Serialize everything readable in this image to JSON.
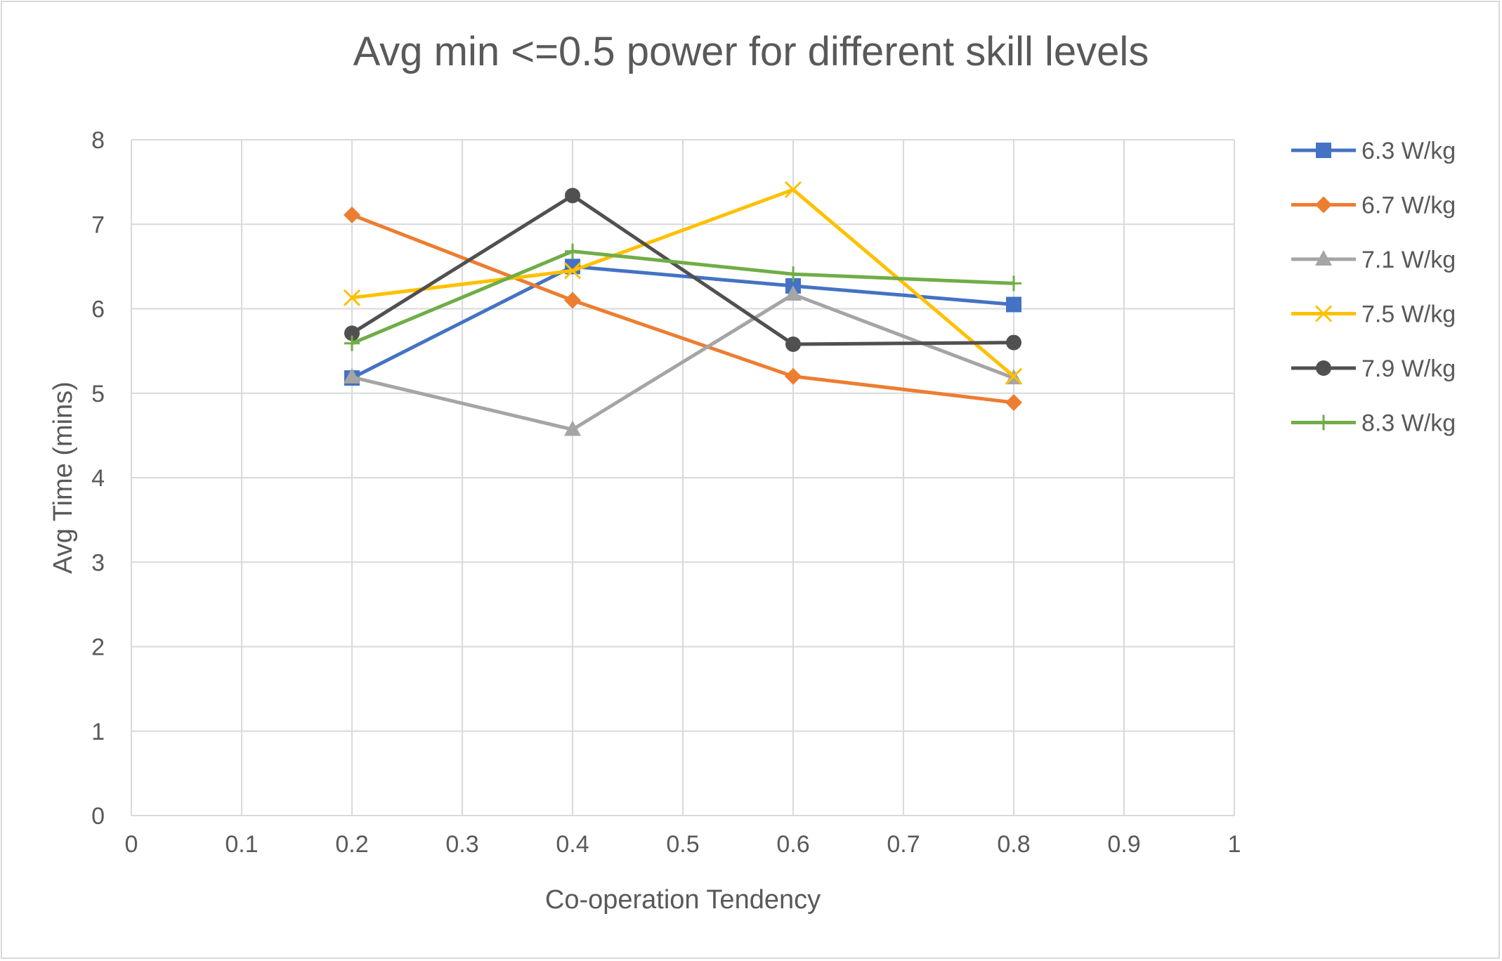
{
  "chart_data": {
    "type": "line",
    "title": "Avg min <=0.5 power for different skill levels",
    "xlabel": "Co-operation Tendency",
    "ylabel": "Avg Time (mins)",
    "xlim": [
      0,
      1
    ],
    "ylim": [
      0,
      8
    ],
    "x_ticks": [
      "0",
      "0.1",
      "0.2",
      "0.3",
      "0.4",
      "0.5",
      "0.6",
      "0.7",
      "0.8",
      "0.9",
      "1"
    ],
    "y_ticks": [
      "0",
      "1",
      "2",
      "3",
      "4",
      "5",
      "6",
      "7",
      "8"
    ],
    "grid": true,
    "legend_position": "right",
    "x": [
      0.2,
      0.4,
      0.6,
      0.8
    ],
    "series": [
      {
        "name": "6.3 W/kg",
        "color": "#4472c4",
        "marker": "square",
        "values": [
          5.18,
          6.5,
          6.27,
          6.05
        ]
      },
      {
        "name": "6.7 W/kg",
        "color": "#ed7d31",
        "marker": "diamond",
        "values": [
          7.11,
          6.1,
          5.2,
          4.89
        ]
      },
      {
        "name": "7.1 W/kg",
        "color": "#a5a5a5",
        "marker": "triangle",
        "values": [
          5.19,
          4.57,
          6.17,
          5.18
        ]
      },
      {
        "name": "7.5 W/kg",
        "color": "#ffc000",
        "marker": "x",
        "values": [
          6.13,
          6.45,
          7.41,
          5.2
        ]
      },
      {
        "name": "7.9 W/kg",
        "color": "#505050",
        "marker": "circle",
        "values": [
          5.71,
          7.34,
          5.58,
          5.6
        ]
      },
      {
        "name": "8.3 W/kg",
        "color": "#70ad47",
        "marker": "plus",
        "values": [
          5.59,
          6.68,
          6.41,
          6.3
        ]
      }
    ]
  }
}
